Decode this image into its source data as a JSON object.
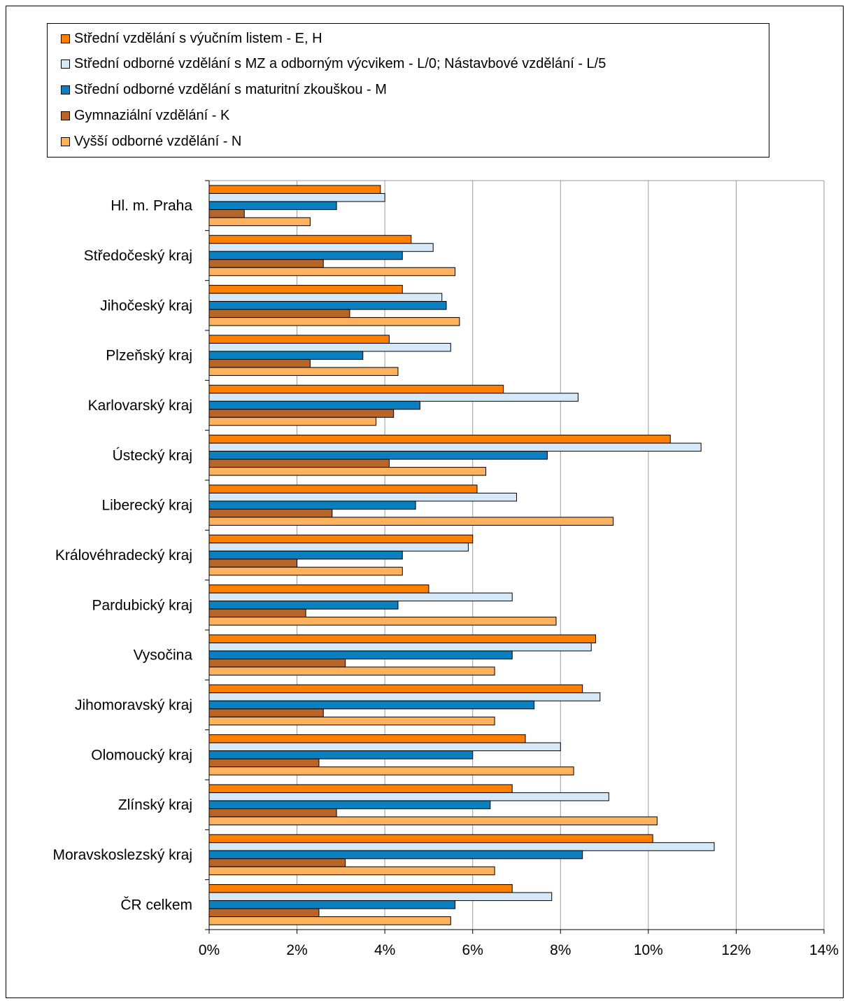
{
  "chart_data": {
    "type": "bar",
    "orientation": "horizontal",
    "xlim": [
      0,
      14
    ],
    "x_ticks": [
      "0%",
      "2%",
      "4%",
      "6%",
      "8%",
      "10%",
      "12%",
      "14%"
    ],
    "grid": "vertical",
    "legend_placement": "top",
    "categories": [
      "Hl. m. Praha",
      "Středočeský kraj",
      "Jihočeský kraj",
      "Plzeňský kraj",
      "Karlovarský kraj",
      "Ústecký kraj",
      "Liberecký kraj",
      "Královéhradecký kraj",
      "Pardubický kraj",
      "Vysočina",
      "Jihomoravský kraj",
      "Olomoucký kraj",
      "Zlínský kraj",
      "Moravskoslezský kraj",
      "ČR celkem"
    ],
    "series": [
      {
        "name": "Střední vzdělání s výučním listem - E, H",
        "color": "#FF7F00",
        "values": [
          3.9,
          4.6,
          4.4,
          4.1,
          6.7,
          10.5,
          6.1,
          6.0,
          5.0,
          8.8,
          8.5,
          7.2,
          6.9,
          10.1,
          6.9
        ]
      },
      {
        "name": "Střední odborné vzdělání s MZ a odborným výcvikem - L/0; Nástavbové vzdělání - L/5",
        "color": "#D6E9F8",
        "values": [
          4.0,
          5.1,
          5.3,
          5.5,
          8.4,
          11.2,
          7.0,
          5.9,
          6.9,
          8.7,
          8.9,
          8.0,
          9.1,
          11.5,
          7.8
        ]
      },
      {
        "name": "Střední odborné vzdělání s maturitní zkouškou - M",
        "color": "#0B80C0",
        "values": [
          2.9,
          4.4,
          5.4,
          3.5,
          4.8,
          7.7,
          4.7,
          4.4,
          4.3,
          6.9,
          7.4,
          6.0,
          6.4,
          8.5,
          5.6
        ]
      },
      {
        "name": "Gymnaziální vzdělání - K",
        "color": "#B8652A",
        "values": [
          0.8,
          2.6,
          3.2,
          2.3,
          4.2,
          4.1,
          2.8,
          2.0,
          2.2,
          3.1,
          2.6,
          2.5,
          2.9,
          3.1,
          2.5
        ]
      },
      {
        "name": "Vyšší odborné vzdělání - N",
        "color": "#FFB25E",
        "values": [
          2.3,
          5.6,
          5.7,
          4.3,
          3.8,
          6.3,
          9.2,
          4.4,
          7.9,
          6.5,
          6.5,
          8.3,
          10.2,
          6.5,
          5.5
        ]
      }
    ]
  }
}
